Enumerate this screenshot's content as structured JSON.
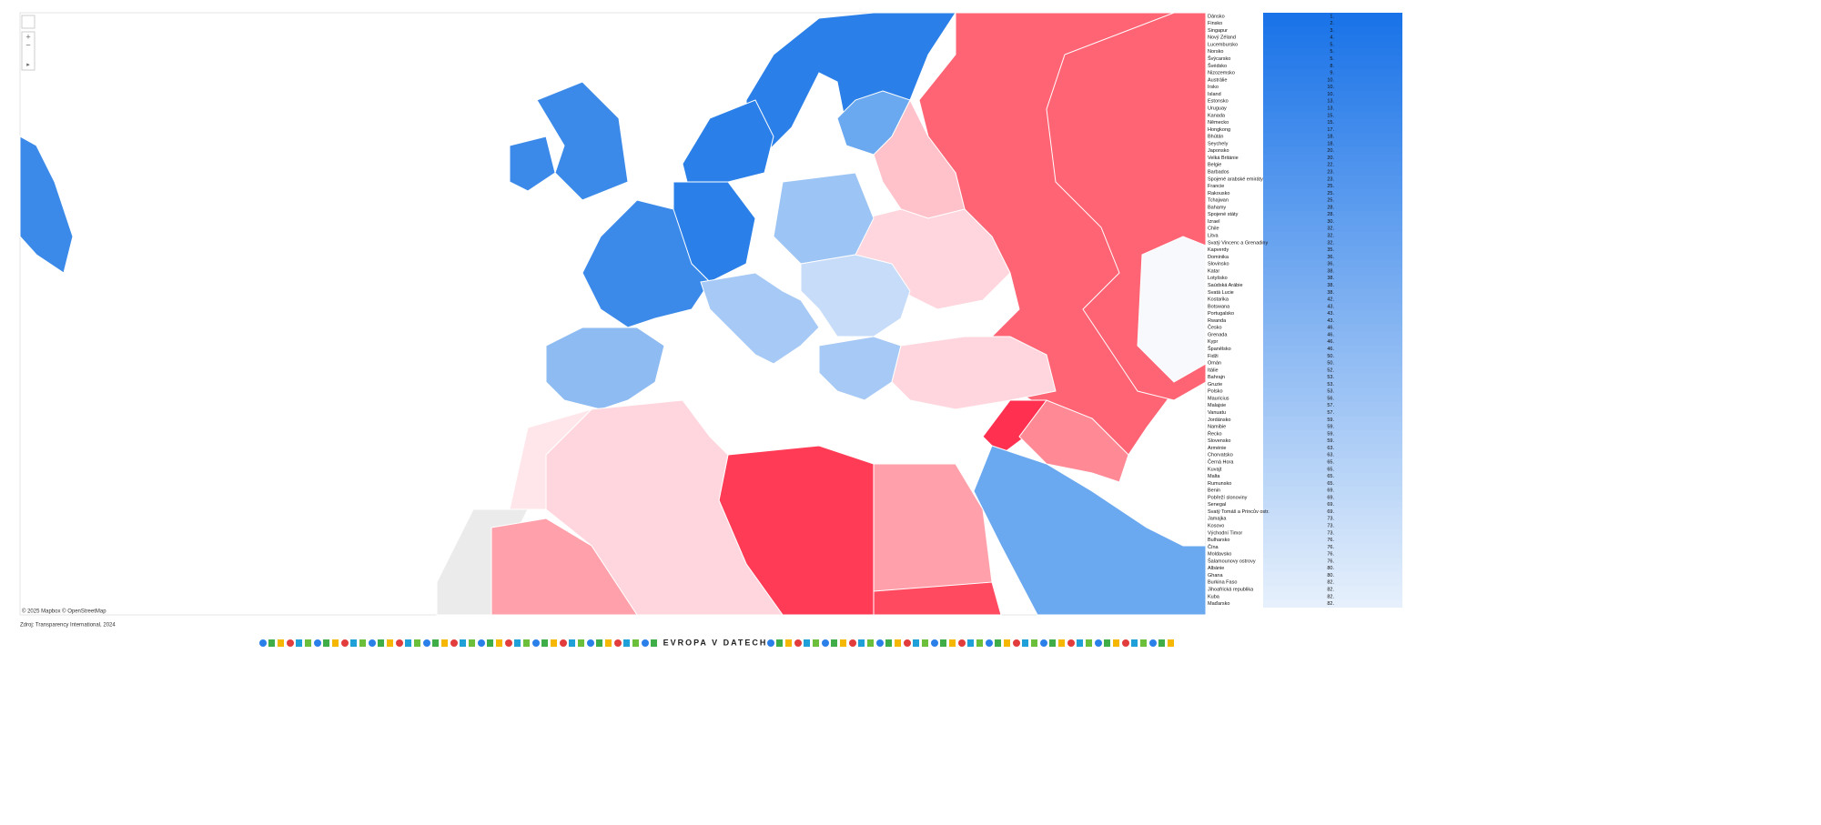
{
  "map": {
    "attribution": "© 2025 Mapbox © OpenStreetMap"
  },
  "source": "Zdroj: Transparency International, 2024",
  "footer": {
    "logo": "EVROPA V DATECH"
  },
  "ranking": {
    "rows": [
      [
        "Dánsko",
        "1."
      ],
      [
        "Finsko",
        "2."
      ],
      [
        "Singapur",
        "3."
      ],
      [
        "Nový Zéland",
        "4."
      ],
      [
        "Lucembursko",
        "5."
      ],
      [
        "Norsko",
        "5."
      ],
      [
        "Švýcarsko",
        "5."
      ],
      [
        "Švédsko",
        "8."
      ],
      [
        "Nizozemsko",
        "9."
      ],
      [
        "Austrálie",
        "10."
      ],
      [
        "Irsko",
        "10."
      ],
      [
        "Island",
        "10."
      ],
      [
        "Estonsko",
        "13."
      ],
      [
        "Uruguay",
        "13."
      ],
      [
        "Kanada",
        "15."
      ],
      [
        "Německo",
        "15."
      ],
      [
        "Hongkong",
        "17."
      ],
      [
        "Bhútán",
        "18."
      ],
      [
        "Seychely",
        "18."
      ],
      [
        "Japonsko",
        "20."
      ],
      [
        "Velká Británie",
        "20."
      ],
      [
        "Belgie",
        "22."
      ],
      [
        "Barbados",
        "23."
      ],
      [
        "Spojené arabské emiráty",
        "23."
      ],
      [
        "Francie",
        "25."
      ],
      [
        "Rakousko",
        "25."
      ],
      [
        "Tchajwan",
        "25."
      ],
      [
        "Bahamy",
        "28."
      ],
      [
        "Spojené státy",
        "28."
      ],
      [
        "Izrael",
        "30."
      ],
      [
        "Chile",
        "32."
      ],
      [
        "Litva",
        "32."
      ],
      [
        "Svatý Vincenc a Grenadiny",
        "32."
      ],
      [
        "Kapverdy",
        "35."
      ],
      [
        "Dominika",
        "36."
      ],
      [
        "Slovinsko",
        "36."
      ],
      [
        "Katar",
        "38."
      ],
      [
        "Lotyšsko",
        "38."
      ],
      [
        "Saúdská Arábie",
        "38."
      ],
      [
        "Svatá Lucie",
        "38."
      ],
      [
        "Kostarika",
        "42."
      ],
      [
        "Botswana",
        "43."
      ],
      [
        "Portugalsko",
        "43."
      ],
      [
        "Rwanda",
        "43."
      ],
      [
        "Česko",
        "46."
      ],
      [
        "Grenada",
        "46."
      ],
      [
        "Kypr",
        "46."
      ],
      [
        "Španělsko",
        "46."
      ],
      [
        "Fidži",
        "50."
      ],
      [
        "Omán",
        "50."
      ],
      [
        "Itálie",
        "52."
      ],
      [
        "Bahrajn",
        "53."
      ],
      [
        "Gruzie",
        "53."
      ],
      [
        "Polsko",
        "53."
      ],
      [
        "Mauricius",
        "56."
      ],
      [
        "Malajsie",
        "57."
      ],
      [
        "Vanuatu",
        "57."
      ],
      [
        "Jordánsko",
        "59."
      ],
      [
        "Namibie",
        "59."
      ],
      [
        "Řecko",
        "59."
      ],
      [
        "Slovensko",
        "59."
      ],
      [
        "Arménie",
        "63."
      ],
      [
        "Chorvatsko",
        "63."
      ],
      [
        "Černá Hora",
        "65."
      ],
      [
        "Kuvajt",
        "65."
      ],
      [
        "Malta",
        "65."
      ],
      [
        "Rumunsko",
        "65."
      ],
      [
        "Benin",
        "69."
      ],
      [
        "Pobřeží slonoviny",
        "69."
      ],
      [
        "Senegal",
        "69."
      ],
      [
        "Svatý Tomáš a Princův ostr.",
        "69."
      ],
      [
        "Jamajka",
        "73."
      ],
      [
        "Kosovo",
        "73."
      ],
      [
        "Východní Timor",
        "73."
      ],
      [
        "Bulharsko",
        "76."
      ],
      [
        "Čína",
        "76."
      ],
      [
        "Moldavsko",
        "76."
      ],
      [
        "Šalamounovy ostrovy",
        "76."
      ],
      [
        "Albánie",
        "80."
      ],
      [
        "Ghana",
        "80."
      ],
      [
        "Burkina Faso",
        "82."
      ],
      [
        "Jihoafrická republika",
        "82."
      ],
      [
        "Kuba",
        "82."
      ],
      [
        "Maďarsko",
        "82."
      ]
    ]
  }
}
